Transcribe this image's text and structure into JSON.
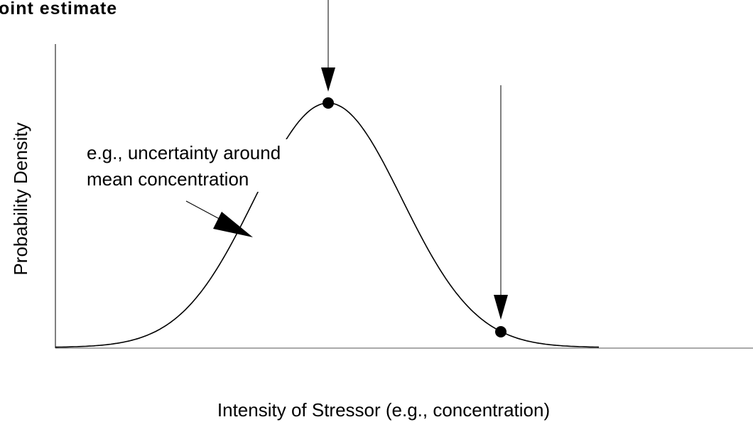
{
  "title": "oint estimate",
  "y_axis_label": "Probability Density",
  "x_axis_label": "Intensity of Stressor (e.g., concentration)",
  "annotation": {
    "lines": [
      "e.g., uncertainty around",
      "mean concentration"
    ]
  }
}
